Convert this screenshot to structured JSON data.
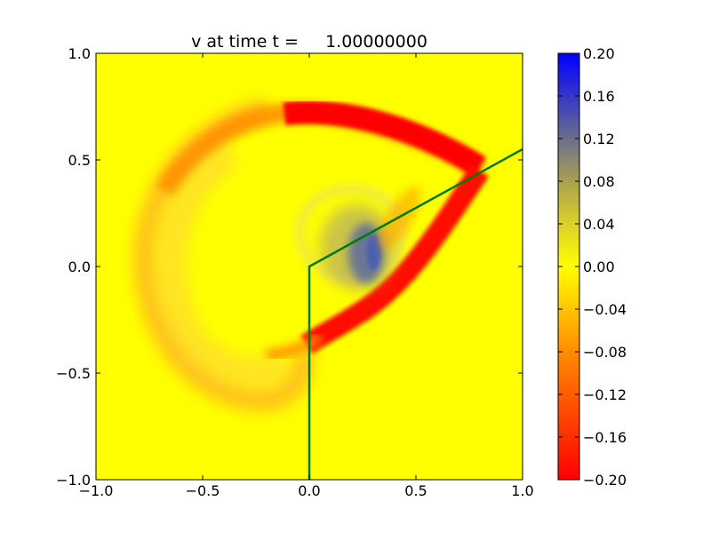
{
  "chart_data": {
    "type": "heatmap",
    "title": "v at time t =     1.00000000",
    "xlabel": "",
    "ylabel": "",
    "xlim": [
      -1.0,
      1.0
    ],
    "ylim": [
      -1.0,
      1.0
    ],
    "x_ticks": [
      "−1.0",
      "−0.5",
      "0.0",
      "0.5",
      "1.0"
    ],
    "y_ticks": [
      "−1.0",
      "−0.5",
      "0.0",
      "0.5",
      "1.0"
    ],
    "colorbar": {
      "min": -0.2,
      "max": 0.2,
      "ticks": [
        "−0.20",
        "−0.16",
        "−0.12",
        "−0.08",
        "−0.04",
        "0.00",
        "0.04",
        "0.08",
        "0.12",
        "0.16",
        "0.20"
      ],
      "colormap_stops": [
        {
          "value": -0.2,
          "color": "#ff0000"
        },
        {
          "value": -0.08,
          "color": "#ff8c00"
        },
        {
          "value": 0.0,
          "color": "#ffff00"
        },
        {
          "value": 0.04,
          "color": "#dcd028"
        },
        {
          "value": 0.08,
          "color": "#a8a050"
        },
        {
          "value": 0.12,
          "color": "#6a6e8c"
        },
        {
          "value": 0.2,
          "color": "#0000ff"
        }
      ]
    },
    "grid": "off",
    "background_value": 0.0,
    "features": [
      {
        "name": "outer-wave-band",
        "value": -0.08,
        "description_points_xy": [
          [
            -0.55,
            0.05
          ],
          [
            -0.75,
            -0.25
          ],
          [
            -0.45,
            -0.7
          ],
          [
            -0.05,
            -0.55
          ],
          [
            0.1,
            -0.3
          ]
        ]
      },
      {
        "name": "upper-red-arc",
        "value": -0.19,
        "x_range": [
          -0.05,
          0.8
        ],
        "y_range": [
          0.4,
          0.78
        ]
      },
      {
        "name": "lower-red-arc",
        "value": -0.19,
        "x_range": [
          0.05,
          0.8
        ],
        "y_range": [
          -0.4,
          0.4
        ]
      },
      {
        "name": "positive-blob",
        "value": 0.14,
        "center": [
          0.28,
          0.05
        ]
      }
    ],
    "overlay_line": {
      "color": "#007a00",
      "points": [
        [
          0.0,
          -1.0
        ],
        [
          0.0,
          0.0
        ],
        [
          1.0,
          0.55
        ]
      ]
    }
  }
}
